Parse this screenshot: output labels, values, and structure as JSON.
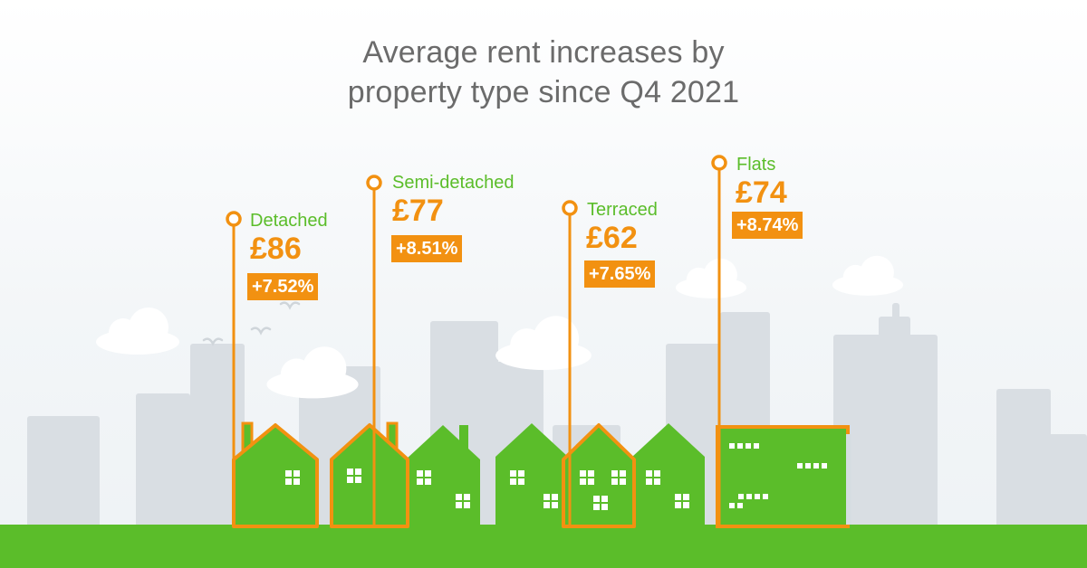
{
  "header": {
    "title_line1": "Average rent increases by",
    "title_line2": "property type since Q4 2021"
  },
  "colors": {
    "accent": "#f29111",
    "green": "#5bbd2a",
    "title": "#6b6b6b",
    "buildings": "#d9dee3",
    "clouds": "#ffffff"
  },
  "chart_data": {
    "type": "bar",
    "title": "Average rent increases by property type since Q4 2021",
    "categories": [
      "Detached",
      "Semi-detached",
      "Terraced",
      "Flats"
    ],
    "values": [
      86,
      77,
      62,
      74
    ],
    "value_labels": [
      "£86",
      "£77",
      "£62",
      "£74"
    ],
    "changes": [
      "+7.52%",
      "+8.51%",
      "+7.65%",
      "+8.74%"
    ],
    "change_pct": [
      7.52,
      8.51,
      7.65,
      8.74
    ],
    "unit": "£",
    "grid": false
  },
  "icons": {
    "marker": "pin-circle-icon",
    "house": "house-icon",
    "flats": "flats-building-icon",
    "bird": "bird-icon",
    "cloud": "cloud-icon"
  }
}
